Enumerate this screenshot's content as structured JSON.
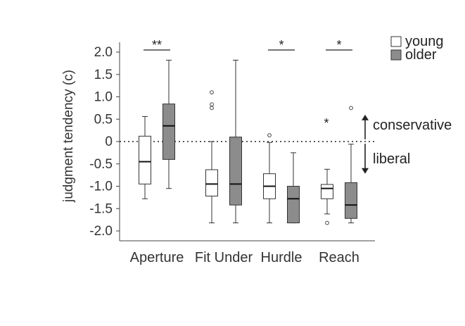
{
  "chart_data": {
    "type": "boxplot",
    "ylabel": "judgment tendency (c)",
    "ylim": [
      -2.2,
      2.2
    ],
    "yticks": [
      2.0,
      1.5,
      1.0,
      0.5,
      0,
      -0.5,
      -1.0,
      -1.5,
      -2.0
    ],
    "ytick_labels": [
      "2.0",
      "1.5",
      "1.0",
      "0.5",
      "0",
      "-0.5",
      "-1.0",
      "-1.5",
      "-2.0"
    ],
    "reference_line": 0,
    "categories": [
      "Aperture",
      "Fit Under",
      "Hurdle",
      "Reach"
    ],
    "series": [
      {
        "name": "young",
        "color": "#ffffff",
        "boxes": [
          {
            "whisker_low": -1.28,
            "q1": -0.95,
            "median": -0.45,
            "q3": 0.12,
            "whisker_high": 0.56,
            "outliers": []
          },
          {
            "whisker_low": -1.82,
            "q1": -1.22,
            "median": -0.95,
            "q3": -0.63,
            "whisker_high": 0.0,
            "outliers": [
              0.75,
              0.83,
              1.1
            ]
          },
          {
            "whisker_low": -1.82,
            "q1": -1.28,
            "median": -1.0,
            "q3": -0.72,
            "whisker_high": -0.02,
            "outliers": [
              0.14
            ]
          },
          {
            "whisker_low": -1.62,
            "q1": -1.28,
            "median": -1.05,
            "q3": -0.96,
            "whisker_high": -0.62,
            "outliers": [
              -1.82
            ]
          }
        ]
      },
      {
        "name": "older",
        "color": "#8c8c8c",
        "boxes": [
          {
            "whisker_low": -1.05,
            "q1": -0.4,
            "median": 0.35,
            "q3": 0.84,
            "whisker_high": 1.82,
            "outliers": []
          },
          {
            "whisker_low": -1.82,
            "q1": -1.42,
            "median": -0.95,
            "q3": 0.1,
            "whisker_high": 1.82,
            "outliers": []
          },
          {
            "whisker_low": -1.82,
            "q1": -1.82,
            "median": -1.28,
            "q3": -1.0,
            "whisker_high": -0.25,
            "outliers": []
          },
          {
            "whisker_low": -1.82,
            "q1": -1.72,
            "median": -1.42,
            "q3": -0.92,
            "whisker_high": -0.06,
            "outliers": [
              0.75
            ]
          }
        ]
      }
    ],
    "extreme_marks": [
      {
        "category": "Reach",
        "series": "young",
        "value": 0.44,
        "symbol": "*"
      }
    ],
    "significance": [
      {
        "category": "Aperture",
        "label": "**"
      },
      {
        "category": "Hurdle",
        "label": "*"
      },
      {
        "category": "Reach",
        "label": "*"
      }
    ],
    "annotations": {
      "up": {
        "text": "conservative"
      },
      "down": {
        "text": "liberal"
      }
    },
    "legend": {
      "position": "top-right",
      "entries": [
        "young",
        "older"
      ]
    },
    "grid": false
  }
}
